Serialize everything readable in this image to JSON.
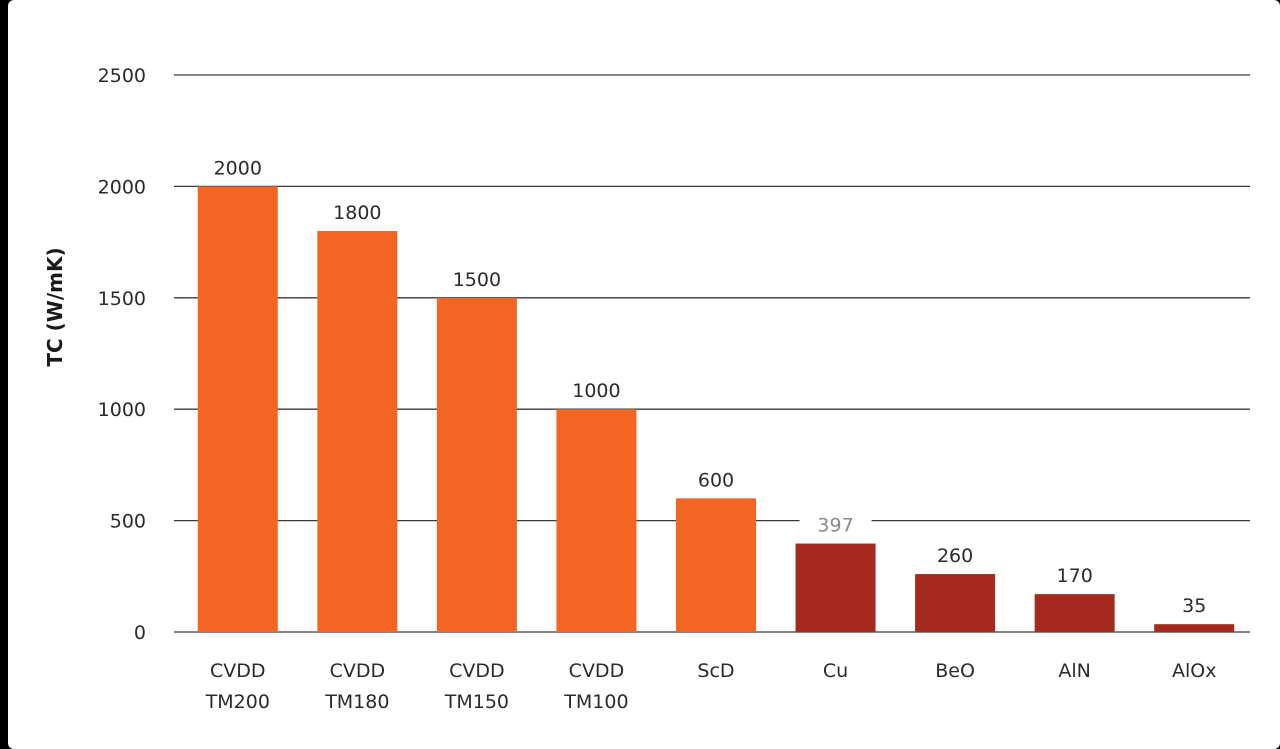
{
  "chart_data": {
    "type": "bar",
    "title": "",
    "xlabel": "",
    "ylabel": "TC (W/mK)",
    "ylim": [
      0,
      2500
    ],
    "yticks": [
      0,
      500,
      1000,
      1500,
      2000,
      2500
    ],
    "grid": true,
    "legend": "none",
    "categories": [
      [
        "CVDD",
        "TM200"
      ],
      [
        "CVDD",
        "TM180"
      ],
      [
        "CVDD",
        "TM150"
      ],
      [
        "CVDD",
        "TM100"
      ],
      [
        "ScD"
      ],
      [
        "Cu"
      ],
      [
        "BeO"
      ],
      [
        "AlN"
      ],
      [
        "AlOx"
      ]
    ],
    "values": [
      2000,
      1800,
      1500,
      1000,
      600,
      397,
      260,
      170,
      35
    ],
    "bar_colors": [
      "#f26522",
      "#f26522",
      "#f26522",
      "#f26522",
      "#f26522",
      "#a52a1d",
      "#a52a1d",
      "#a52a1d",
      "#a52a1d"
    ],
    "data_label_colors": [
      "#2b2b2b",
      "#2b2b2b",
      "#2b2b2b",
      "#2b2b2b",
      "#2b2b2b",
      "#8a8a8a",
      "#2b2b2b",
      "#2b2b2b",
      "#2b2b2b"
    ]
  },
  "colors": {
    "accent_orange": "#f26522",
    "dark_red": "#a52a1d",
    "grid": "#3a3a3a",
    "background": "#ffffff"
  }
}
